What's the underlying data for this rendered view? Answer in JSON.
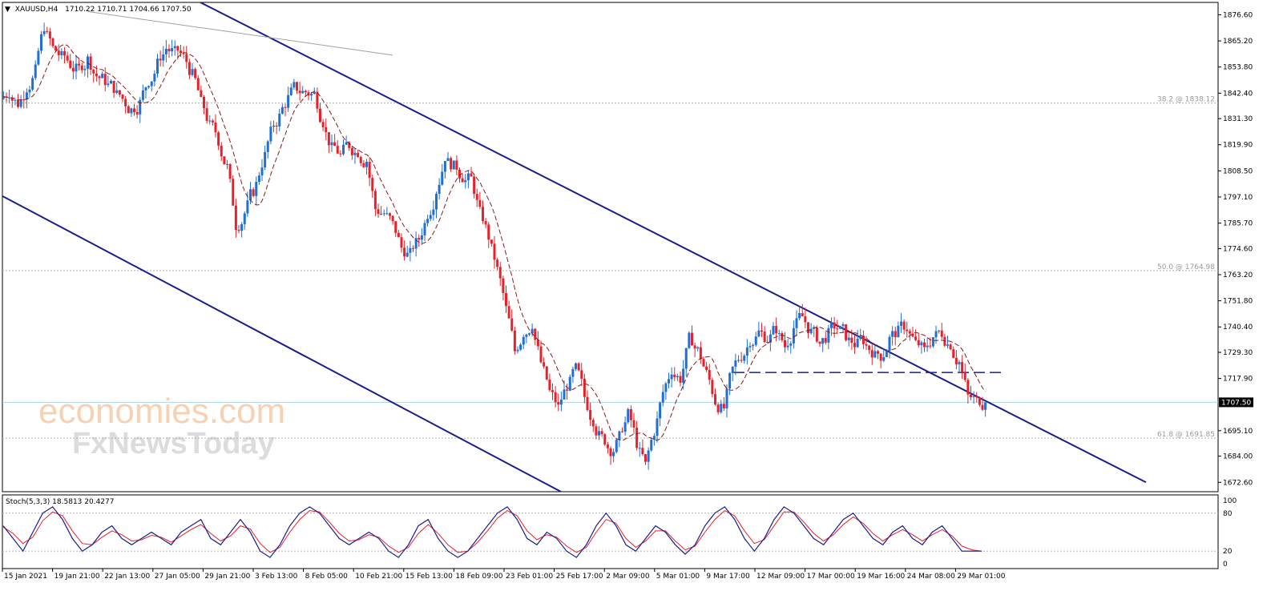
{
  "header": {
    "symbol": "XAUUSD,H4",
    "ohlc": "1710.22 1710.71 1704.66 1707.50"
  },
  "watermark": {
    "brand": "economies.com",
    "sub": "FxNewsToday"
  },
  "colors": {
    "bull": "#1f6fd6",
    "bear": "#e8202a",
    "ma": "#8b1a1a",
    "channel": "#1a1e8c",
    "stoch_main": "#1a1e8c",
    "stoch_signal": "#e8202a",
    "grid": "#c0c0c0"
  },
  "indicator": {
    "label": "Stoch(5,3,3) 18.5813 20.4277",
    "levels": [
      "100",
      "80",
      "20",
      "0"
    ]
  },
  "chart_data": {
    "type": "candlestick",
    "symbol": "XAUUSD",
    "timeframe": "H4",
    "ylim": [
      1668.5,
      1882.0
    ],
    "y_ticks": [
      "1876.60",
      "1865.20",
      "1853.80",
      "1842.40",
      "1831.30",
      "1819.90",
      "1808.50",
      "1797.10",
      "1785.70",
      "1774.60",
      "1763.20",
      "1751.80",
      "1740.40",
      "1729.30",
      "1717.90",
      "1695.10",
      "1684.00",
      "1672.60"
    ],
    "current_price": "1707.50",
    "x_ticks": [
      "15 Jan 2021",
      "19 Jan 21:00",
      "22 Jan 13:00",
      "27 Jan 05:00",
      "29 Jan 21:00",
      "3 Feb 13:00",
      "8 Feb 05:00",
      "10 Feb 21:00",
      "15 Feb 13:00",
      "18 Feb 09:00",
      "23 Feb 01:00",
      "25 Feb 17:00",
      "2 Mar 09:00",
      "5 Mar 01:00",
      "9 Mar 17:00",
      "12 Mar 09:00",
      "17 Mar 00:00",
      "19 Mar 16:00",
      "24 Mar 08:00",
      "29 Mar 01:00"
    ],
    "fib_levels": [
      {
        "label": "38.2 @ 1838.12",
        "price": 1838.12
      },
      {
        "label": "50.0 @ 1764.98",
        "price": 1764.98
      },
      {
        "label": "61.8 @ 1691.85",
        "price": 1691.85
      }
    ],
    "support_level": 1720.5,
    "close_path": [
      1843,
      1838,
      1845,
      1852,
      1872,
      1862,
      1858,
      1855,
      1853,
      1857,
      1850,
      1848,
      1845,
      1840,
      1835,
      1838,
      1848,
      1855,
      1862,
      1860,
      1858,
      1850,
      1838,
      1828,
      1822,
      1810,
      1785,
      1790,
      1800,
      1812,
      1825,
      1832,
      1840,
      1845,
      1843,
      1842,
      1830,
      1818,
      1815,
      1820,
      1817,
      1813,
      1792,
      1790,
      1785,
      1775,
      1772,
      1779,
      1790,
      1800,
      1815,
      1810,
      1806,
      1805,
      1790,
      1780,
      1765,
      1748,
      1730,
      1738,
      1742,
      1725,
      1712,
      1705,
      1715,
      1722,
      1710,
      1700,
      1692,
      1687,
      1692,
      1702,
      1690,
      1680,
      1695,
      1712,
      1722,
      1718,
      1735,
      1730,
      1720,
      1708,
      1705,
      1722,
      1728,
      1735,
      1738,
      1735,
      1740,
      1732,
      1740,
      1745,
      1738,
      1733,
      1737,
      1740,
      1737,
      1733,
      1735,
      1730,
      1728,
      1735,
      1738,
      1740,
      1733,
      1730,
      1736,
      1738,
      1733,
      1725,
      1710,
      1708,
      1707.5
    ],
    "stoch_main_path": [
      60,
      40,
      20,
      50,
      80,
      90,
      70,
      40,
      20,
      30,
      50,
      60,
      40,
      30,
      40,
      50,
      40,
      30,
      50,
      60,
      70,
      40,
      30,
      50,
      70,
      50,
      20,
      10,
      30,
      60,
      80,
      90,
      80,
      60,
      40,
      30,
      40,
      50,
      40,
      20,
      10,
      30,
      60,
      70,
      40,
      20,
      10,
      20,
      40,
      60,
      80,
      90,
      70,
      40,
      30,
      50,
      40,
      20,
      10,
      30,
      60,
      80,
      60,
      30,
      20,
      40,
      60,
      50,
      30,
      15,
      30,
      60,
      80,
      90,
      70,
      40,
      20,
      40,
      70,
      90,
      80,
      60,
      40,
      30,
      50,
      70,
      80,
      60,
      40,
      30,
      50,
      60,
      40,
      30,
      50,
      60,
      40,
      20,
      20,
      20
    ],
    "stoch_signal_path": [
      58,
      48,
      32,
      42,
      68,
      82,
      76,
      52,
      32,
      30,
      42,
      52,
      46,
      36,
      38,
      45,
      42,
      34,
      44,
      54,
      62,
      48,
      36,
      44,
      60,
      55,
      32,
      18,
      26,
      50,
      70,
      84,
      82,
      66,
      48,
      36,
      38,
      46,
      42,
      28,
      18,
      26,
      48,
      62,
      48,
      30,
      18,
      20,
      34,
      52,
      72,
      84,
      76,
      52,
      38,
      46,
      42,
      28,
      18,
      26,
      50,
      70,
      64,
      40,
      26,
      36,
      52,
      52,
      36,
      22,
      28,
      50,
      70,
      84,
      76,
      52,
      32,
      38,
      60,
      82,
      82,
      66,
      48,
      36,
      46,
      62,
      74,
      64,
      48,
      36,
      46,
      54,
      46,
      36,
      46,
      54,
      44,
      28,
      22,
      20
    ]
  }
}
